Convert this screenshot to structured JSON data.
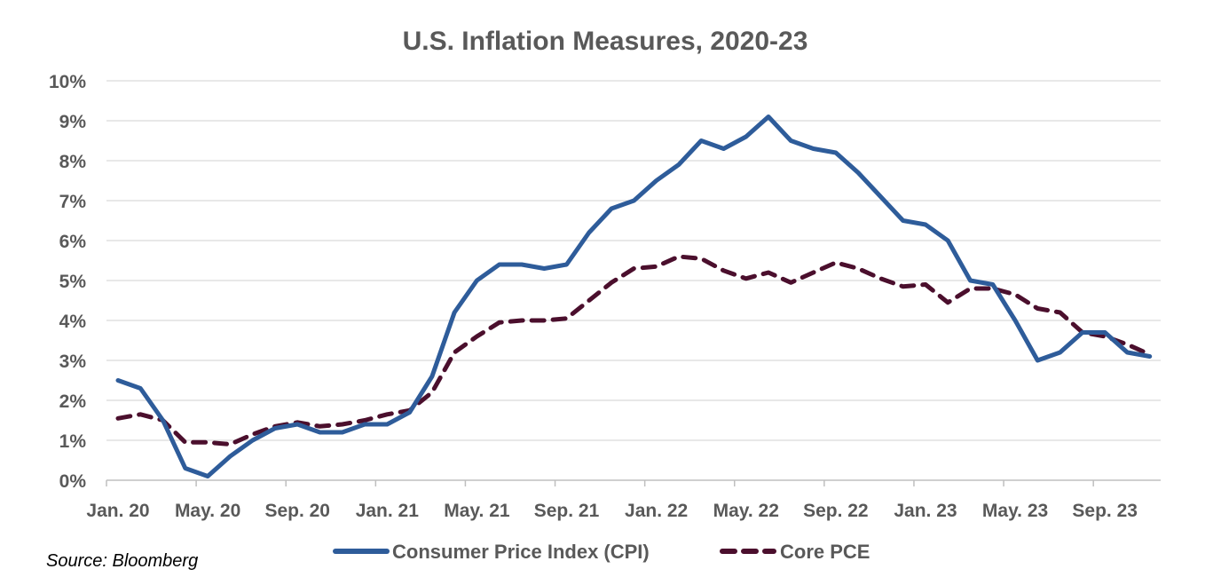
{
  "chart_data": {
    "type": "line",
    "title": "U.S. Inflation Measures, 2020-23",
    "xlabel": "",
    "ylabel": "",
    "ylim": [
      0,
      10
    ],
    "yticks": [
      "0%",
      "1%",
      "2%",
      "3%",
      "4%",
      "5%",
      "6%",
      "7%",
      "8%",
      "9%",
      "10%"
    ],
    "xticks": [
      "Jan. 20",
      "May. 20",
      "Sep. 20",
      "Jan. 21",
      "May. 21",
      "Sep. 21",
      "Jan. 22",
      "May. 22",
      "Sep. 22",
      "Jan. 23",
      "May. 23",
      "Sep. 23"
    ],
    "grid": true,
    "legend_position": "bottom",
    "source": "Source: Bloomberg",
    "series": [
      {
        "name": "Consumer Price Index (CPI)",
        "color": "#2e5c9a",
        "style": "solid",
        "values": [
          2.5,
          2.3,
          1.5,
          0.3,
          0.1,
          0.6,
          1.0,
          1.3,
          1.4,
          1.2,
          1.2,
          1.4,
          1.4,
          1.7,
          2.6,
          4.2,
          5.0,
          5.4,
          5.4,
          5.3,
          5.4,
          6.2,
          6.8,
          7.0,
          7.5,
          7.9,
          8.5,
          8.3,
          8.6,
          9.1,
          8.5,
          8.3,
          8.2,
          7.7,
          7.1,
          6.5,
          6.4,
          6.0,
          5.0,
          4.9,
          4.0,
          3.0,
          3.2,
          3.7,
          3.7,
          3.2,
          3.1
        ]
      },
      {
        "name": "Core PCE",
        "color": "#4b0f2d",
        "style": "dashed",
        "values": [
          1.55,
          1.65,
          1.5,
          0.95,
          0.95,
          0.9,
          1.15,
          1.35,
          1.45,
          1.35,
          1.4,
          1.5,
          1.65,
          1.75,
          2.2,
          3.2,
          3.6,
          3.95,
          4.0,
          4.0,
          4.05,
          4.5,
          4.95,
          5.3,
          5.35,
          5.6,
          5.55,
          5.25,
          5.05,
          5.2,
          4.95,
          5.2,
          5.45,
          5.3,
          5.05,
          4.85,
          4.9,
          4.45,
          4.8,
          4.8,
          4.65,
          4.3,
          4.2,
          3.7,
          3.6,
          3.4,
          3.15
        ]
      }
    ]
  }
}
